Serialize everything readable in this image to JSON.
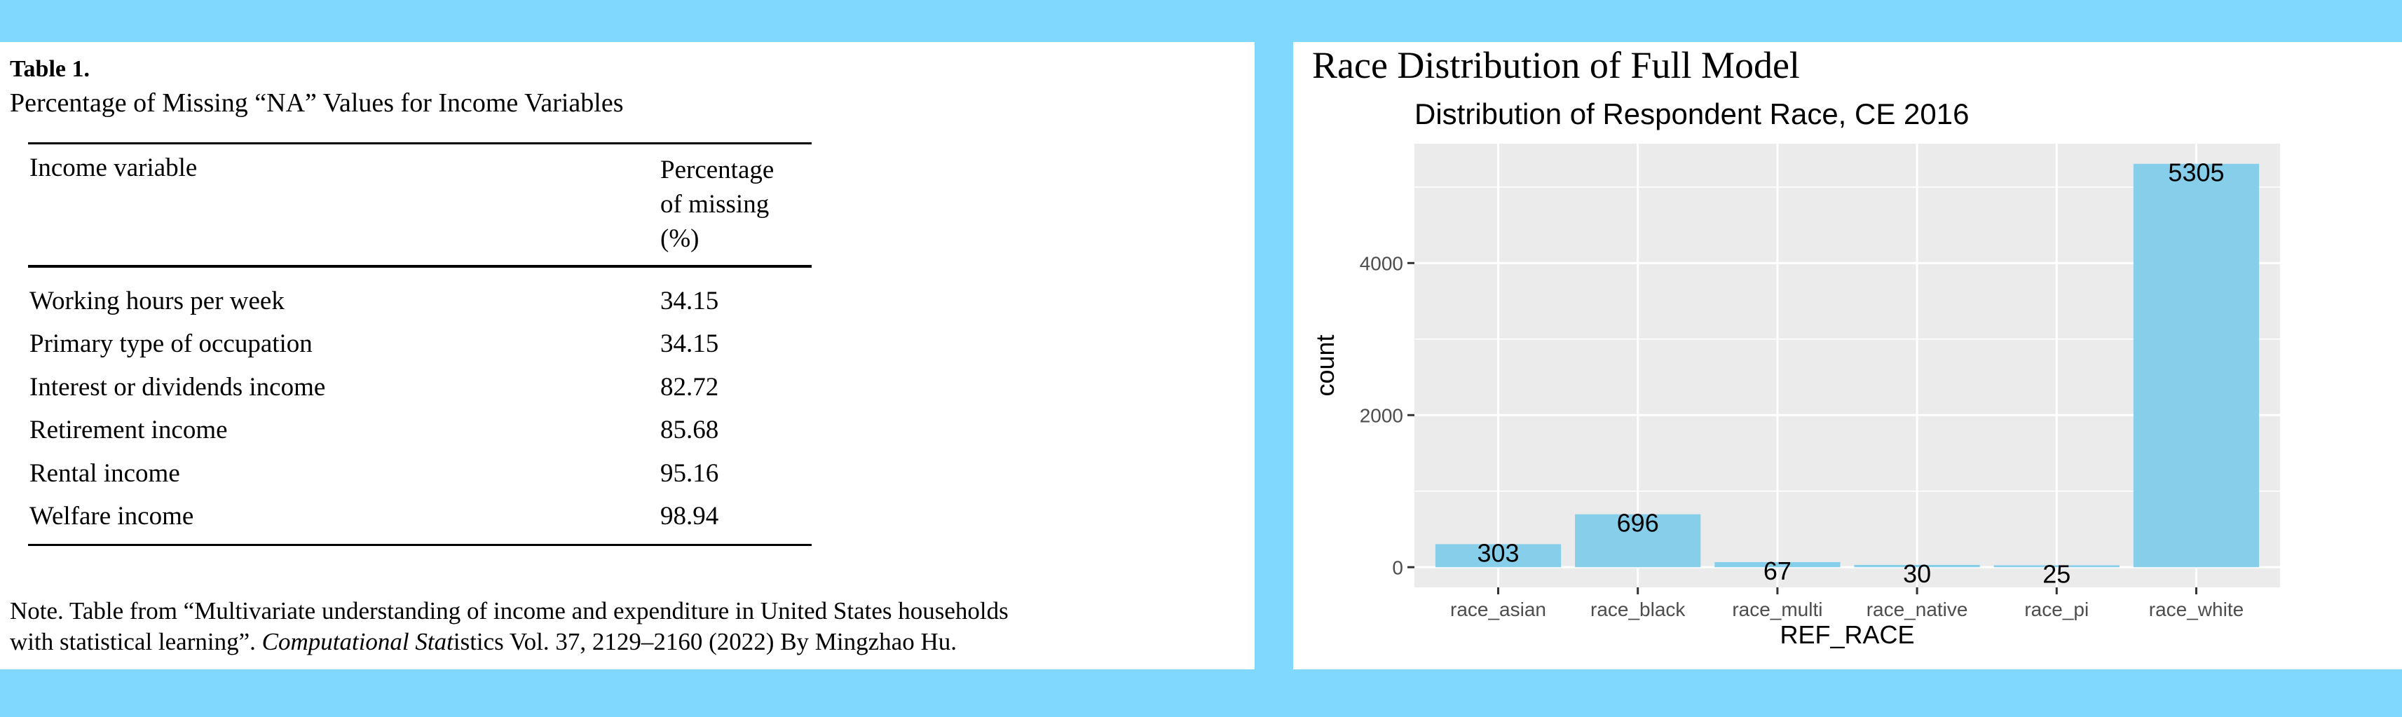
{
  "table": {
    "label": "Table 1.",
    "caption": "Percentage of Missing “NA” Values for Income Variables",
    "col1_header": "Income variable",
    "col2_header": "Percentage\nof missing\n(%)",
    "rows": [
      {
        "name": "Working hours per week",
        "value": "34.15"
      },
      {
        "name": "Primary type of occupation",
        "value": "34.15"
      },
      {
        "name": "Interest or dividends income",
        "value": "82.72"
      },
      {
        "name": "Retirement income",
        "value": "85.68"
      },
      {
        "name": "Rental income",
        "value": "95.16"
      },
      {
        "name": "Welfare income",
        "value": "98.94"
      }
    ],
    "note_line1": "Note. Table from “Multivariate understanding of income and expenditure in United States households",
    "note_line2_a": "with statistical learning”. ",
    "note_line2_italic": "Computational Stat",
    "note_line2_b": "istics Vol. 37, 2129–2160 (2022) By Mingzhao Hu."
  },
  "panel_title": "Race Distribution of Full Model",
  "chart_data": {
    "type": "bar",
    "title": "Distribution of Respondent Race, CE 2016",
    "xlabel": "REF_RACE",
    "ylabel": "count",
    "categories": [
      "race_asian",
      "race_black",
      "race_multi",
      "race_native",
      "race_pi",
      "race_white"
    ],
    "values": [
      303,
      696,
      67,
      30,
      25,
      5305
    ],
    "data_labels": [
      "303",
      "696",
      "67",
      "30",
      "25",
      "5305"
    ],
    "yticks": [
      0,
      2000,
      4000
    ],
    "ylim": [
      -265,
      5570
    ],
    "grid": true,
    "bar_color": "#87ceeb",
    "panel_background": "#ebebeb"
  }
}
